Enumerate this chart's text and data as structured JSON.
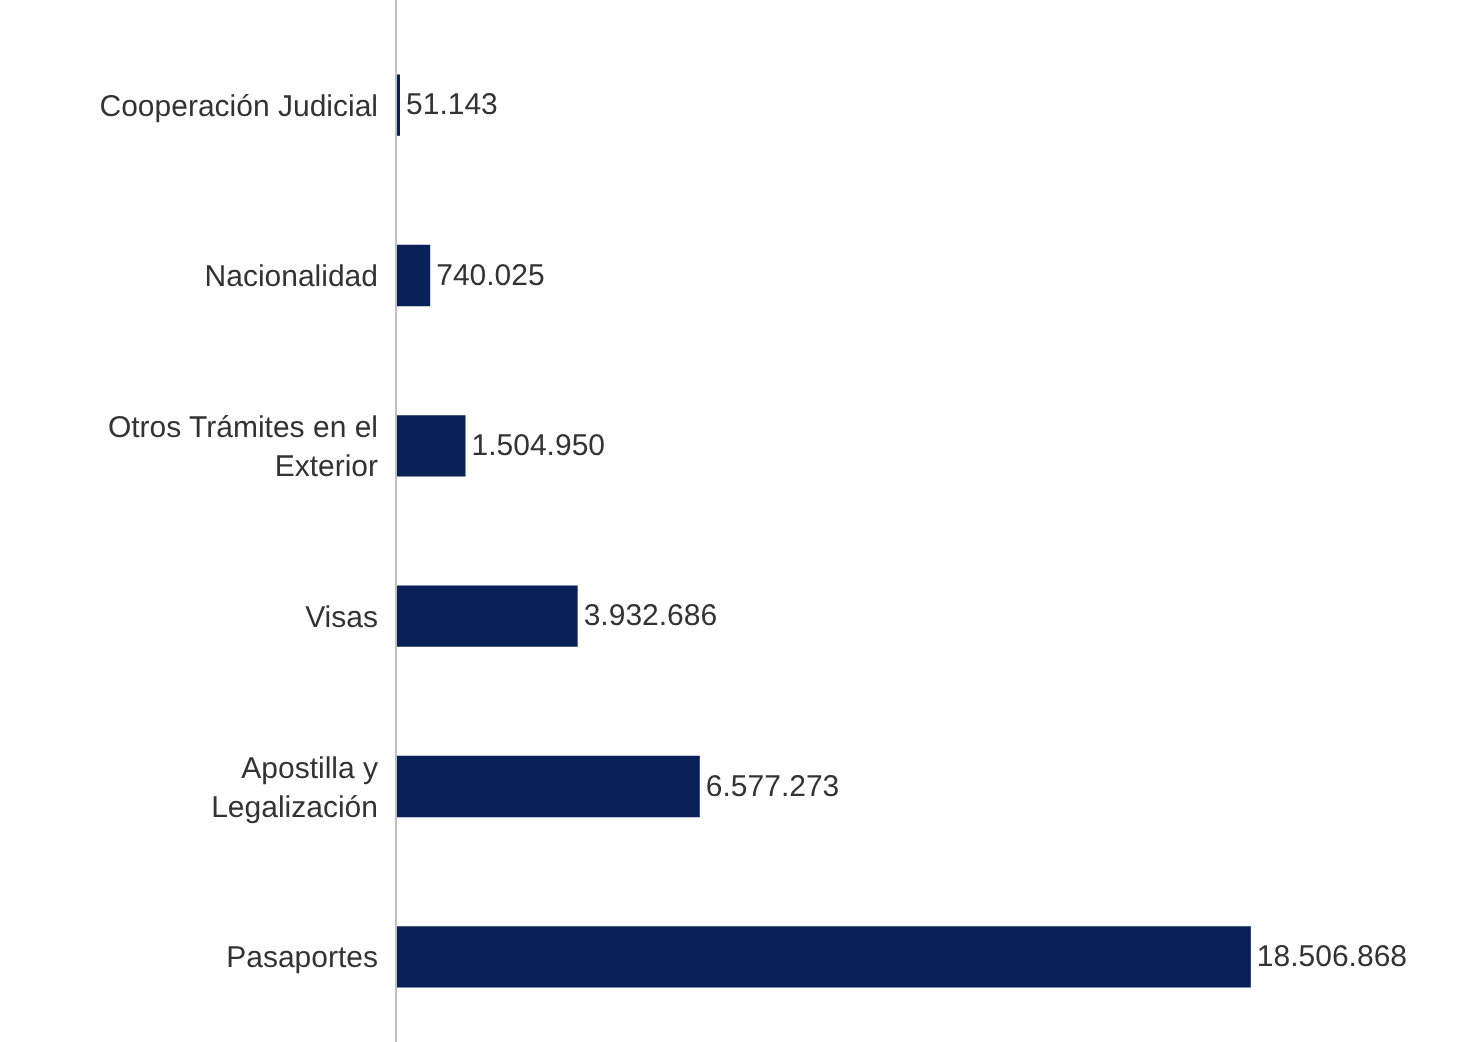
{
  "chart_data": {
    "type": "bar",
    "orientation": "horizontal",
    "categories": [
      "Cooperación Judicial",
      "Nacionalidad",
      "Otros Trámites en el Exterior",
      "Visas",
      "Apostilla y Legalización",
      "Pasaportes"
    ],
    "values": [
      51143,
      740025,
      1504950,
      3932686,
      6577273,
      18506868
    ],
    "value_labels": [
      "51.143",
      "740.025",
      "1.504.950",
      "3.932.686",
      "6.577.273",
      "18.506.868"
    ],
    "color": "#0a2157"
  }
}
